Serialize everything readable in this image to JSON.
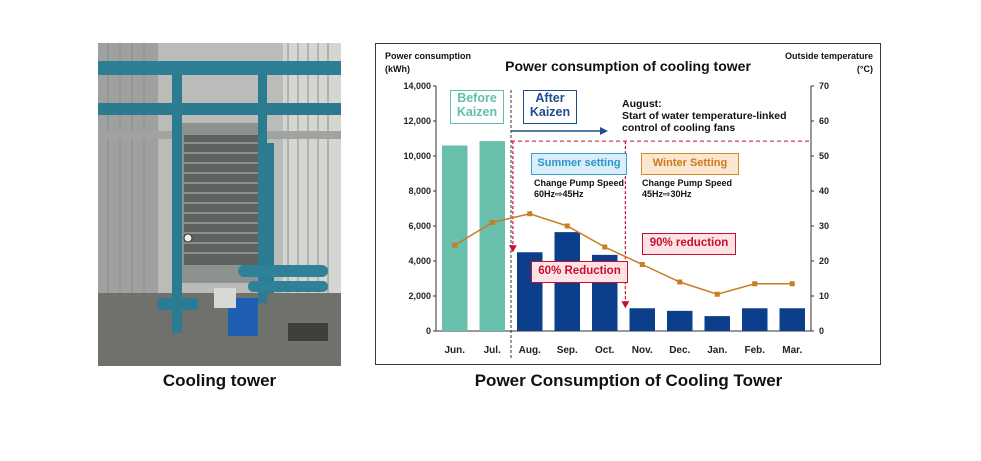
{
  "photo_caption": "Cooling tower",
  "figure_caption": "Power Consumption of Cooling Tower",
  "chart_data": {
    "type": "bar+line",
    "title": "Power consumption of cooling tower",
    "left_axis_label": [
      "Power consumption",
      "(kWh)"
    ],
    "right_axis_label": [
      "Outside temperature",
      "(°C)"
    ],
    "categories": [
      "Jun.",
      "Jul.",
      "Aug.",
      "Sep.",
      "Oct.",
      "Nov.",
      "Dec.",
      "Jan.",
      "Feb.",
      "Mar."
    ],
    "left_ylim": [
      0,
      14000
    ],
    "left_ticks": [
      "0",
      "2,000",
      "4,000",
      "6,000",
      "8,000",
      "10,000",
      "12,000",
      "14,000"
    ],
    "right_ylim": [
      0,
      70
    ],
    "right_ticks": [
      "0",
      "10",
      "20",
      "30",
      "40",
      "50",
      "60",
      "70"
    ],
    "series": [
      {
        "name": "Power consumption",
        "kind": "bar",
        "values": [
          10600,
          10850,
          4500,
          5650,
          4350,
          1300,
          1150,
          850,
          1300,
          1300
        ],
        "colors": [
          "#68bfab",
          "#68bfab",
          "#0b3f8c",
          "#0b3f8c",
          "#0b3f8c",
          "#0b3f8c",
          "#0b3f8c",
          "#0b3f8c",
          "#0b3f8c",
          "#0b3f8c"
        ]
      },
      {
        "name": "Outside temperature",
        "kind": "line",
        "axis": "right",
        "color": "#c87d23",
        "values": [
          24.5,
          31,
          33.5,
          30,
          24,
          19,
          14,
          10.5,
          13.5,
          13.5
        ]
      }
    ],
    "annotations": {
      "before": "Before Kaizen",
      "after": "After Kaizen",
      "august_line1": "August:",
      "august_line2": "Start of water temperature-linked",
      "august_line3": "control of cooling fans",
      "summer_label": "Summer setting",
      "summer_note1": "Change Pump Speed",
      "summer_note2": "60Hz⇨45Hz",
      "winter_label": "Winter Setting",
      "winter_note1": "Change Pump Speed",
      "winter_note2": "45Hz⇨30Hz",
      "reduction_60": "60% Reduction",
      "reduction_90": "90% reduction"
    },
    "colors": {
      "before": "#5fbfad",
      "after": "#1f4c8f",
      "summer": "#3aa0d0",
      "winter": "#d58a2c",
      "reduction": "#c8102e",
      "dashed_reference": "#c8102e"
    }
  }
}
